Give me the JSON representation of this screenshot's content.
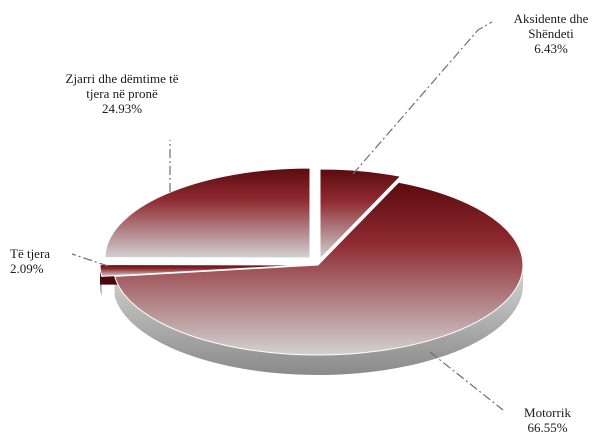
{
  "chart_data": {
    "type": "pie",
    "style": "3d-exploded",
    "slices": [
      {
        "label": "Aksidente dhe Shëndeti",
        "value": 6.43,
        "value_label": "6.43%"
      },
      {
        "label": "Motorrik",
        "value": 66.55,
        "value_label": "66.55%"
      },
      {
        "label": "Të tjera",
        "value": 2.09,
        "value_label": "2.09%"
      },
      {
        "label": "Zjarri dhe dëmtime të tjera në pronë",
        "value": 24.93,
        "value_label": "24.93%"
      }
    ],
    "colors": {
      "dark_red": "#5a0a0f",
      "mid_red": "#8e2a30",
      "light_grey": "#d2d2d2",
      "side_grey": "#8a8a8a",
      "side_red": "#4a0a0c",
      "leader": "#707070"
    },
    "legend": "none"
  }
}
